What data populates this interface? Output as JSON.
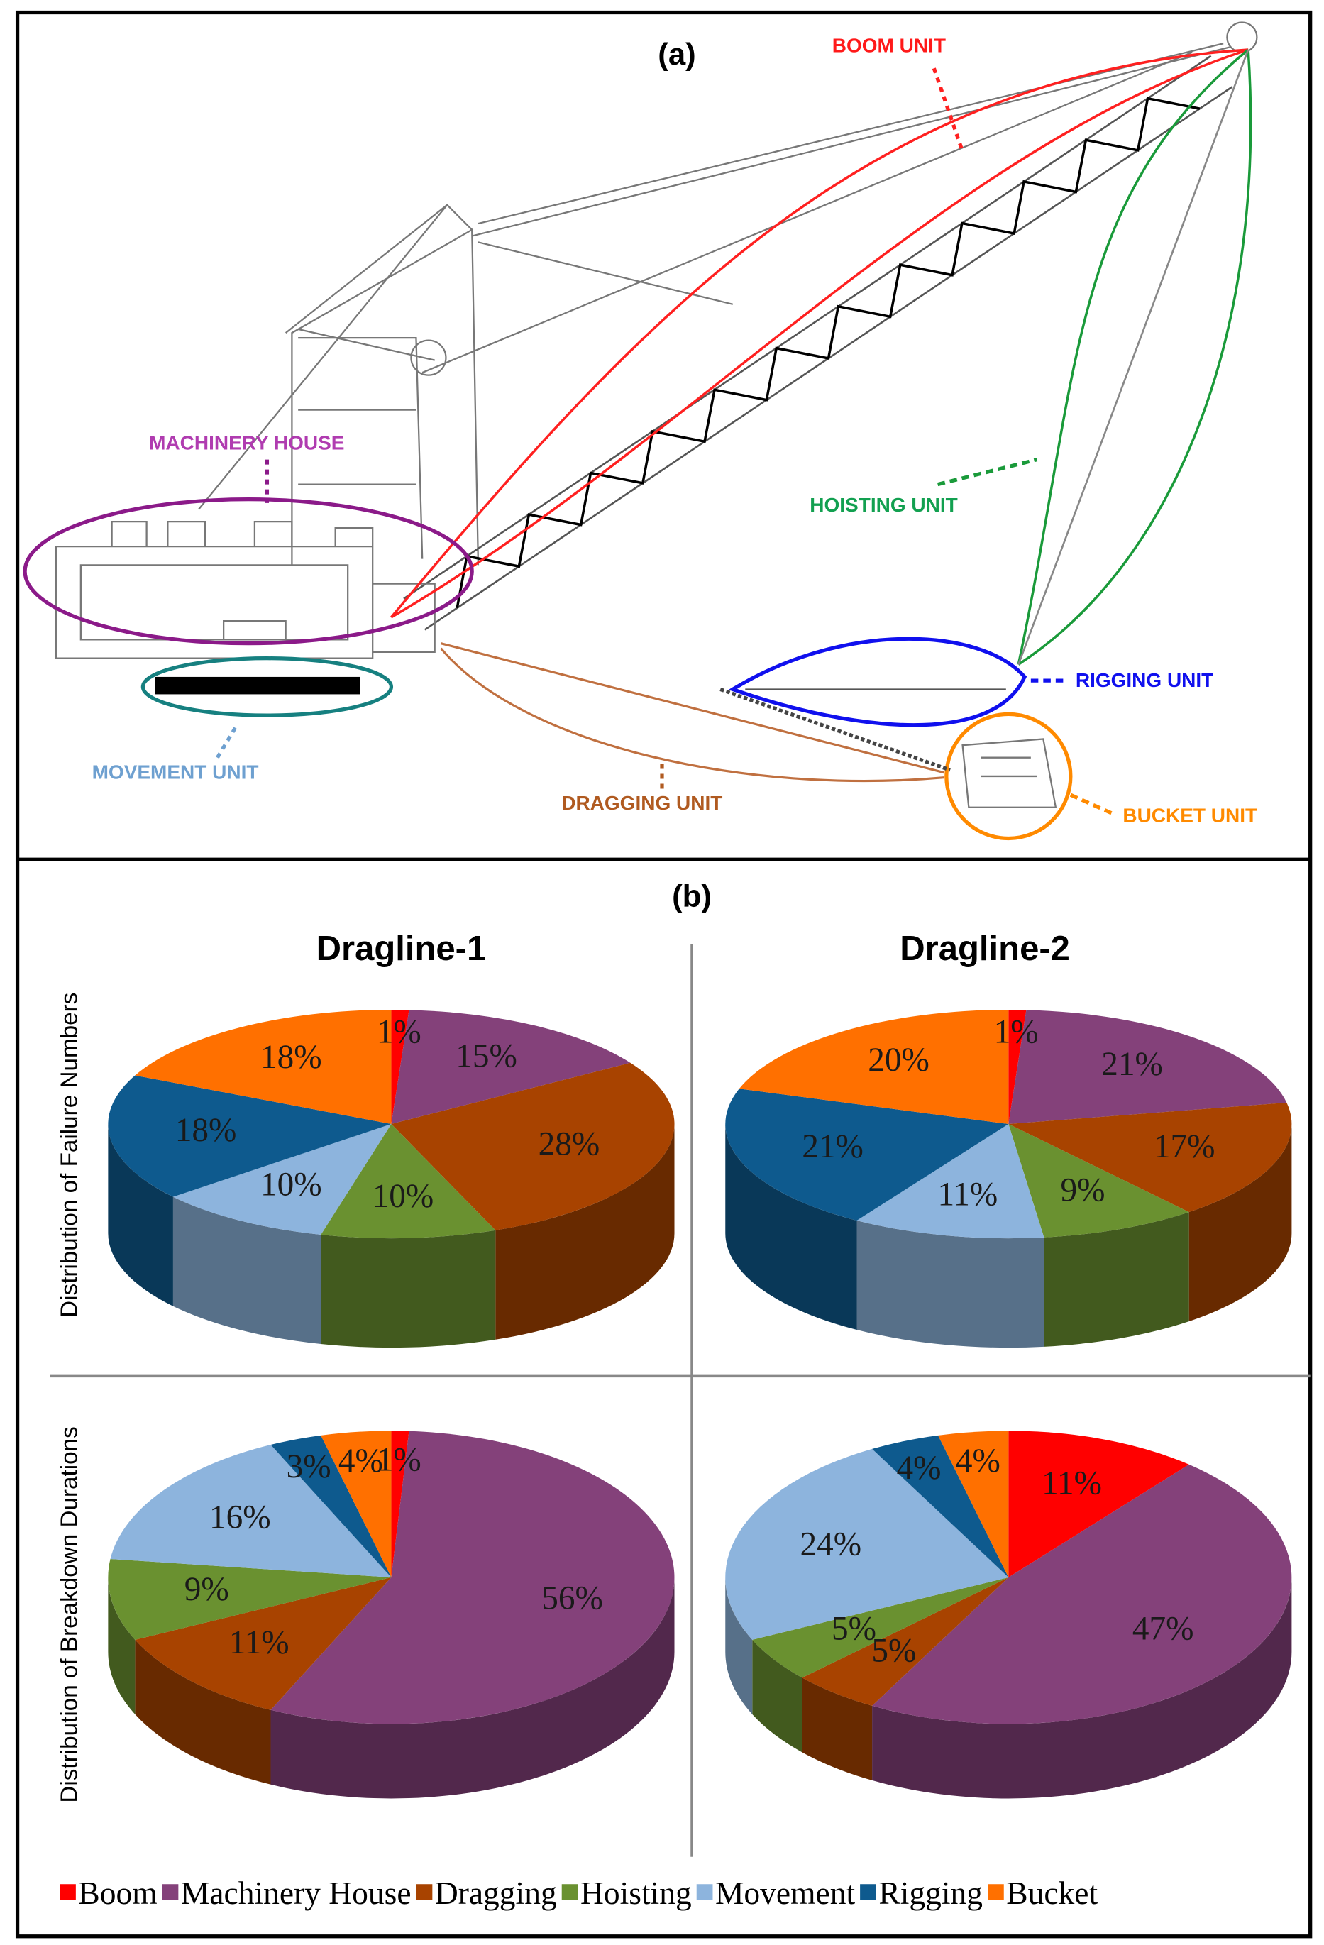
{
  "diagram": {
    "label": "(a)",
    "units": [
      "BOOM UNIT",
      "MACHINERY HOUSE",
      "HOISTING UNIT",
      "RIGGING UNIT",
      "MOVEMENT UNIT",
      "DRAGGING UNIT",
      "BUCKET UNIT"
    ]
  },
  "panel_b_label": "(b)",
  "chart_data": [
    {
      "type": "pie",
      "title": "Dragline-1",
      "ylabel": "Distribution of Failure Numbers",
      "categories": [
        "Boom",
        "Machinery House",
        "Dragging",
        "Hoisting",
        "Movement",
        "Rigging",
        "Bucket"
      ],
      "colors": [
        "#ff0000",
        "#84417a",
        "#a84300",
        "#6a9130",
        "#8db4dd",
        "#0e5a8e",
        "#ff7000"
      ],
      "values": [
        1,
        15,
        28,
        10,
        10,
        18,
        18
      ],
      "value_labels": [
        "1%",
        "15%",
        "28%",
        "10%",
        "10%",
        "18%",
        "18%"
      ]
    },
    {
      "type": "pie",
      "title": "Dragline-2",
      "categories": [
        "Boom",
        "Machinery House",
        "Dragging",
        "Hoisting",
        "Movement",
        "Rigging",
        "Bucket"
      ],
      "colors": [
        "#ff0000",
        "#84417a",
        "#a84300",
        "#6a9130",
        "#8db4dd",
        "#0e5a8e",
        "#ff7000"
      ],
      "values": [
        1,
        21,
        17,
        9,
        11,
        21,
        20
      ],
      "value_labels": [
        "1%",
        "21%",
        "17%",
        "9%",
        "11%",
        "21%",
        "20%"
      ]
    },
    {
      "type": "pie",
      "ylabel": "Distribution of Breakdown Durations",
      "categories": [
        "Boom",
        "Machinery House",
        "Dragging",
        "Hoisting",
        "Movement",
        "Rigging",
        "Bucket"
      ],
      "colors": [
        "#ff0000",
        "#84417a",
        "#a84300",
        "#6a9130",
        "#8db4dd",
        "#0e5a8e",
        "#ff7000"
      ],
      "values": [
        1,
        56,
        11,
        9,
        16,
        3,
        4
      ],
      "value_labels": [
        "1%",
        "56%",
        "11%",
        "9%",
        "16%",
        "3%",
        "4%"
      ]
    },
    {
      "type": "pie",
      "categories": [
        "Boom",
        "Machinery House",
        "Dragging",
        "Hoisting",
        "Movement",
        "Rigging",
        "Bucket"
      ],
      "colors": [
        "#ff0000",
        "#84417a",
        "#a84300",
        "#6a9130",
        "#8db4dd",
        "#0e5a8e",
        "#ff7000"
      ],
      "values": [
        11,
        47,
        5,
        5,
        24,
        4,
        4
      ],
      "value_labels": [
        "11%",
        "47%",
        "5%",
        "5%",
        "24%",
        "4%",
        "4%"
      ]
    }
  ]
}
